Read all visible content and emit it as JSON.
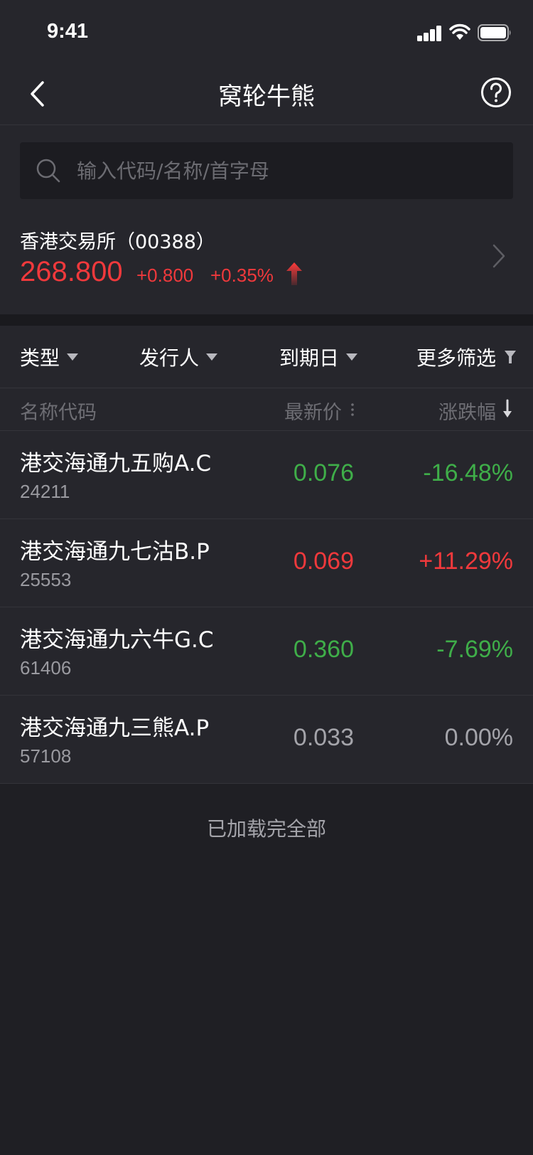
{
  "status_bar": {
    "time": "9:41"
  },
  "nav": {
    "title": "窝轮牛熊"
  },
  "search": {
    "placeholder": "输入代码/名称/首字母",
    "value": ""
  },
  "index": {
    "name": "香港交易所（00388）",
    "price": "268.800",
    "change": "+0.800",
    "change_pct": "+0.35%"
  },
  "filters": [
    {
      "label": "类型"
    },
    {
      "label": "发行人"
    },
    {
      "label": "到期日"
    },
    {
      "label": "更多筛选"
    }
  ],
  "columns": {
    "name": "名称代码",
    "price": "最新价",
    "change": "涨跌幅"
  },
  "rows": [
    {
      "name": "港交海通九五购A.C",
      "code": "24211",
      "price": "0.076",
      "change": "-16.48%",
      "trend": "down"
    },
    {
      "name": "港交海通九七沽B.P",
      "code": "25553",
      "price": "0.069",
      "change": "+11.29%",
      "trend": "up"
    },
    {
      "name": "港交海通九六牛G.C",
      "code": "61406",
      "price": "0.360",
      "change": "-7.69%",
      "trend": "down"
    },
    {
      "name": "港交海通九三熊A.P",
      "code": "57108",
      "price": "0.033",
      "change": "0.00%",
      "trend": "flat"
    }
  ],
  "footer": {
    "text": "已加载完全部"
  },
  "colors": {
    "up": "#f0393c",
    "down": "#3fae49",
    "flat": "#a4a4aa",
    "background": "#1f1f24",
    "panel": "#26262c"
  }
}
